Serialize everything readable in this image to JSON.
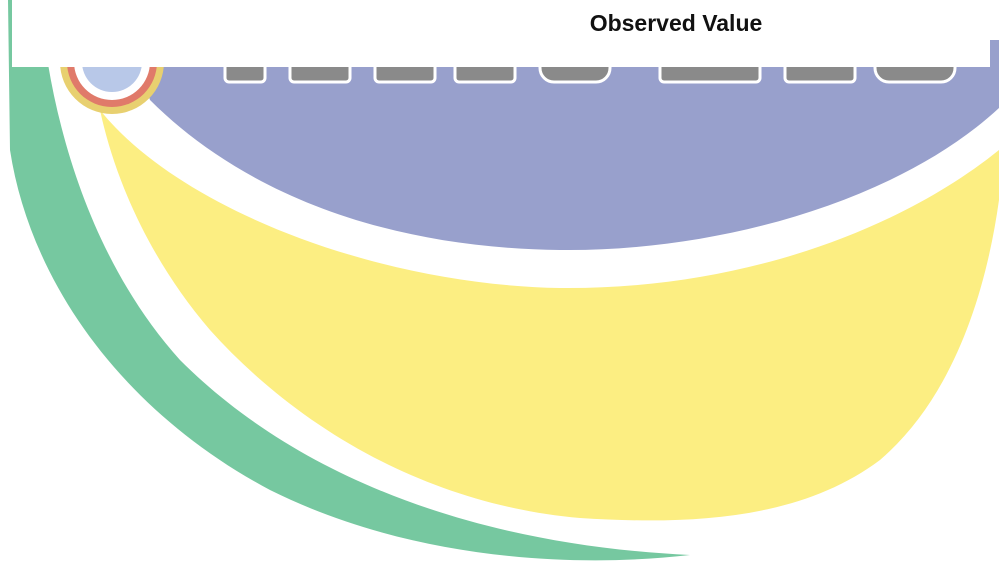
{
  "header": {
    "title": "Observed Value"
  }
}
